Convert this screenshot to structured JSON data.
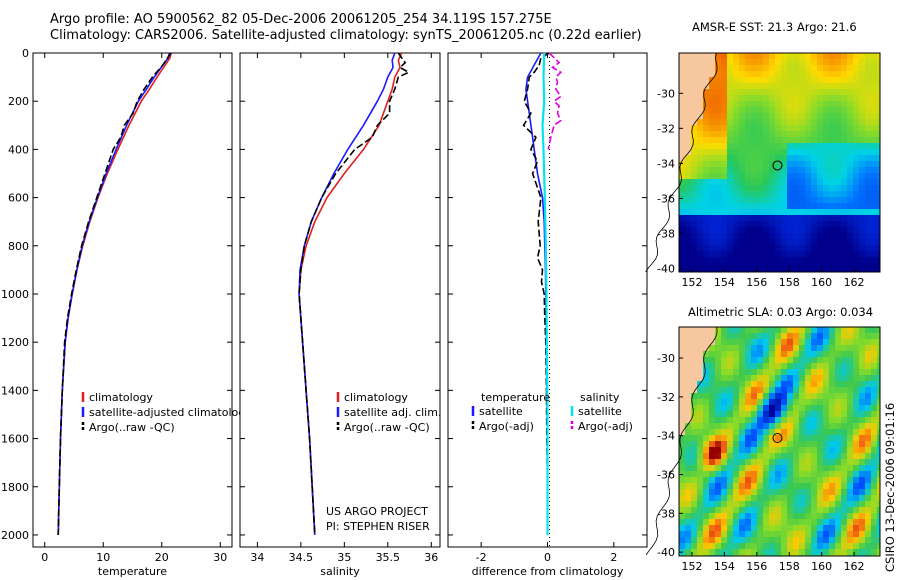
{
  "header": {
    "line1": "Argo profile: AO 5900562_82 05-Dec-2006 20061205_254 34.119S 157.275E",
    "line2": "Climatology: CARS2006. Satellite-adjusted climatology: synTS_20061205.nc (0.22d earlier)"
  },
  "colors": {
    "climatology": "#e02020",
    "satellite": "#1a1aff",
    "argo": "#000000",
    "sat_temp_diff": "#00e5ee",
    "argo_sal_diff": "#e000e0",
    "land": "#f7c8a0"
  },
  "chart_data": [
    {
      "type": "line",
      "id": "temperature",
      "xlabel": "temperature",
      "ylabel": "",
      "xlim": [
        -2,
        32
      ],
      "ylim": [
        2050,
        0
      ],
      "xticks": [
        0,
        10,
        20,
        30
      ],
      "yticks": [
        0,
        200,
        400,
        600,
        800,
        1000,
        1200,
        1400,
        1600,
        1800,
        2000
      ],
      "legend": [
        "climatology",
        "satellite-adjusted climatology",
        "Argo(..raw -QC)"
      ],
      "series": [
        {
          "name": "climatology",
          "depth": [
            0,
            20,
            50,
            100,
            150,
            200,
            300,
            400,
            500,
            600,
            700,
            800,
            900,
            1000,
            1100,
            1200,
            1400,
            1600,
            1800,
            2000
          ],
          "values": [
            21.6,
            21.4,
            20.6,
            19.2,
            17.9,
            16.5,
            14.4,
            12.5,
            10.7,
            9.1,
            7.7,
            6.5,
            5.5,
            4.7,
            4.0,
            3.5,
            3.0,
            2.7,
            2.5,
            2.3
          ]
        },
        {
          "name": "satellite-adjusted climatology",
          "depth": [
            0,
            20,
            50,
            100,
            150,
            200,
            300,
            400,
            500,
            600,
            700,
            800,
            900,
            1000,
            1100,
            1200,
            1400,
            1600,
            1800,
            2000
          ],
          "values": [
            21.3,
            21.1,
            20.2,
            18.7,
            17.4,
            16.0,
            14.0,
            12.2,
            10.5,
            9.0,
            7.6,
            6.4,
            5.5,
            4.7,
            4.0,
            3.5,
            3.0,
            2.7,
            2.5,
            2.3
          ]
        },
        {
          "name": "Argo(..raw -QC)",
          "depth": [
            0,
            20,
            50,
            100,
            150,
            200,
            250,
            300,
            350,
            400,
            500,
            600,
            700,
            800,
            900,
            1000,
            1100,
            1200,
            1400,
            1600,
            1800,
            2000
          ],
          "values": [
            21.6,
            21.0,
            20.2,
            18.4,
            17.0,
            15.8,
            15.1,
            13.6,
            13.0,
            11.7,
            10.3,
            8.9,
            7.5,
            6.3,
            5.4,
            4.6,
            3.9,
            3.4,
            3.0,
            2.7,
            2.5,
            2.3
          ]
        }
      ]
    },
    {
      "type": "line",
      "id": "salinity",
      "xlabel": "salinity",
      "ylabel": "",
      "xlim": [
        33.8,
        36.1
      ],
      "ylim": [
        2050,
        0
      ],
      "xticks": [
        34,
        34.5,
        35,
        35.5,
        36
      ],
      "legend": [
        "climatology",
        "satellite adj. clim.",
        "Argo(..raw -QC)"
      ],
      "series": [
        {
          "name": "climatology",
          "depth": [
            0,
            30,
            60,
            100,
            150,
            200,
            300,
            400,
            500,
            600,
            700,
            800,
            900,
            1000,
            1200,
            1400,
            1600,
            1800,
            2000
          ],
          "values": [
            35.66,
            35.62,
            35.64,
            35.58,
            35.55,
            35.5,
            35.4,
            35.22,
            35.0,
            34.8,
            34.66,
            34.56,
            34.5,
            34.48,
            34.52,
            34.56,
            34.6,
            34.63,
            34.66
          ]
        },
        {
          "name": "satellite adj. clim.",
          "depth": [
            0,
            30,
            60,
            100,
            150,
            200,
            300,
            400,
            500,
            600,
            700,
            800,
            900,
            1000,
            1200,
            1400,
            1600,
            1800,
            2000
          ],
          "values": [
            35.58,
            35.55,
            35.56,
            35.5,
            35.45,
            35.38,
            35.22,
            35.04,
            34.88,
            34.74,
            34.62,
            34.54,
            34.49,
            34.48,
            34.52,
            34.56,
            34.6,
            34.63,
            34.66
          ]
        },
        {
          "name": "Argo(..raw -QC)",
          "depth": [
            0,
            20,
            40,
            60,
            80,
            100,
            150,
            200,
            250,
            300,
            350,
            400,
            500,
            600,
            700,
            800,
            900,
            1000,
            1200,
            1400,
            1600,
            1800,
            2000
          ],
          "values": [
            35.62,
            35.66,
            35.7,
            35.64,
            35.74,
            35.62,
            35.58,
            35.52,
            35.52,
            35.38,
            35.32,
            35.12,
            34.9,
            34.74,
            34.62,
            34.54,
            34.5,
            34.48,
            34.52,
            34.56,
            34.6,
            34.63,
            34.66
          ]
        }
      ],
      "annotations": [
        "US ARGO PROJECT",
        "PI: STEPHEN RISER"
      ]
    },
    {
      "type": "line",
      "id": "difference",
      "xlabel": "difference from climatology",
      "ylabel": "",
      "xlim": [
        -3,
        3
      ],
      "ylim": [
        2050,
        0
      ],
      "xticks": [
        -2,
        0,
        2
      ],
      "legend_groups": [
        {
          "title": "temperature",
          "entries": [
            "satellite",
            "Argo(-adj)"
          ]
        },
        {
          "title": "salinity",
          "entries": [
            "satellite",
            "Argo(-adj)"
          ]
        }
      ],
      "series": [
        {
          "name": "temperature satellite",
          "depth": [
            0,
            50,
            100,
            150,
            200,
            250,
            300,
            350,
            400,
            500,
            600,
            700,
            800,
            900,
            1000,
            1200,
            1400,
            1600,
            1800,
            2000
          ],
          "values": [
            -0.2,
            -0.4,
            -0.6,
            -0.65,
            -0.6,
            -0.55,
            -0.5,
            -0.45,
            -0.4,
            -0.3,
            -0.15,
            -0.1,
            -0.08,
            -0.06,
            -0.05,
            -0.03,
            -0.02,
            0,
            0,
            0
          ]
        },
        {
          "name": "temperature Argo(-adj)",
          "depth": [
            0,
            20,
            50,
            80,
            100,
            150,
            200,
            250,
            300,
            350,
            400,
            450,
            500,
            600,
            700,
            800,
            850,
            900,
            950,
            1000,
            1100,
            1200,
            1400,
            1600,
            1800,
            2000
          ],
          "values": [
            0.05,
            -0.2,
            -0.25,
            -0.4,
            -0.55,
            -0.6,
            -0.7,
            -0.5,
            -0.72,
            -0.35,
            -0.5,
            -0.3,
            -0.45,
            -0.2,
            -0.28,
            -0.22,
            -0.3,
            -0.15,
            -0.18,
            -0.1,
            -0.08,
            -0.05,
            -0.03,
            -0.02,
            0,
            0
          ]
        },
        {
          "name": "salinity satellite",
          "depth": [
            0,
            100,
            200,
            300,
            400,
            600,
            800,
            1000,
            1200,
            1500,
            2000
          ],
          "values": [
            -0.1,
            -0.12,
            -0.1,
            -0.15,
            -0.12,
            -0.08,
            -0.05,
            -0.03,
            -0.02,
            0,
            0
          ]
        },
        {
          "name": "salinity Argo(-adj)",
          "depth": [
            0,
            20,
            40,
            60,
            80,
            100,
            120,
            150,
            180,
            200,
            220,
            250,
            280,
            300,
            350,
            400
          ],
          "values": [
            0.05,
            0.2,
            0.35,
            0.15,
            0.4,
            0.25,
            0.3,
            0.25,
            0.4,
            0.2,
            0.35,
            0.3,
            0.4,
            0.2,
            0.1,
            0.02
          ]
        }
      ]
    }
  ],
  "maps": [
    {
      "title": "AMSR-E SST: 21.3  Argo: 21.6",
      "field": "sst",
      "xticks": [
        152,
        154,
        156,
        158,
        160,
        162
      ],
      "yticks": [
        -30,
        -32,
        -34,
        -36,
        -38,
        -40
      ],
      "lon": [
        151.2,
        163.6
      ],
      "lat": [
        -40.2,
        -27.7
      ],
      "marker": {
        "lon": 157.275,
        "lat": -34.119
      }
    },
    {
      "title": "Altimetric SLA: 0.03  Argo: 0.034",
      "field": "sla",
      "xticks": [
        152,
        154,
        156,
        158,
        160,
        162
      ],
      "yticks": [
        -30,
        -32,
        -34,
        -36,
        -38,
        -40
      ],
      "lon": [
        151.2,
        163.6
      ],
      "lat": [
        -40.2,
        -28.4
      ],
      "marker": {
        "lon": 157.275,
        "lat": -34.119
      }
    }
  ],
  "credit": "CSIRO 13-Dec-2006 09:01:16"
}
